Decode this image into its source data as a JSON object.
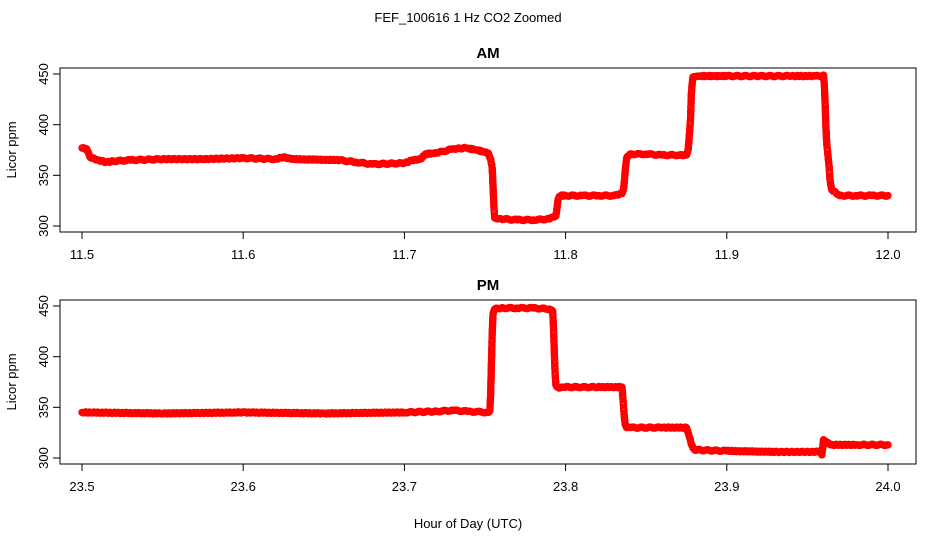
{
  "figure": {
    "title": "FEF_100616  1 Hz CO2 Zoomed",
    "xlabel": "Hour of Day (UTC)"
  },
  "chart_data": [
    {
      "type": "scatter",
      "title": "AM",
      "ylabel": "Licor ppm",
      "xlim": [
        11.5,
        12.0
      ],
      "ylim": [
        300,
        450
      ],
      "xticks": [
        "11.5",
        "11.6",
        "11.7",
        "11.8",
        "11.9",
        "12.0"
      ],
      "yticks": [
        "300",
        "350",
        "400",
        "450"
      ],
      "marker_color": "#ff0000",
      "grid": false,
      "series": [
        {
          "x": [
            11.5,
            11.503,
            11.505,
            11.51,
            11.515,
            11.52,
            11.53,
            11.55,
            11.575,
            11.6,
            11.62,
            11.625,
            11.63,
            11.66,
            11.67,
            11.68,
            11.7,
            11.705,
            11.71,
            11.713,
            11.72,
            11.73,
            11.738,
            11.745,
            11.752,
            11.7535,
            11.7545,
            11.755,
            11.7555,
            11.756,
            11.76,
            11.77,
            11.78,
            11.79,
            11.794,
            11.7945,
            11.795,
            11.7955,
            11.796,
            11.797,
            11.8,
            11.81,
            11.82,
            11.83,
            11.835,
            11.836,
            11.8365,
            11.837,
            11.8375,
            11.838,
            11.84,
            11.85,
            11.86,
            11.87,
            11.875,
            11.876,
            11.877,
            11.8775,
            11.878,
            11.8785,
            11.879,
            11.882,
            11.9,
            11.92,
            11.94,
            11.955,
            11.959,
            11.96,
            11.9605,
            11.961,
            11.9615,
            11.962,
            11.9625,
            11.963,
            11.9635,
            11.964,
            11.965,
            11.97,
            11.98,
            11.99,
            12.0
          ],
          "y": [
            377,
            376,
            368,
            365,
            363,
            364,
            365,
            366,
            366,
            367,
            366,
            368,
            366,
            365,
            363,
            361,
            362,
            365,
            366,
            371,
            372,
            376,
            377,
            375,
            372,
            366,
            357,
            338,
            320,
            308,
            307,
            306,
            306,
            307,
            310,
            316,
            322,
            327,
            329,
            330,
            330,
            330,
            330,
            330,
            332,
            337,
            345,
            355,
            362,
            368,
            371,
            371,
            370,
            370,
            370,
            375,
            394,
            406,
            430,
            440,
            447,
            448,
            448,
            448,
            448,
            448,
            448,
            449,
            439,
            420,
            397,
            381,
            374,
            366,
            358,
            346,
            336,
            330,
            330,
            330,
            330
          ]
        }
      ]
    },
    {
      "type": "scatter",
      "title": "PM",
      "ylabel": "Licor ppm",
      "xlim": [
        23.5,
        24.0
      ],
      "ylim": [
        300,
        450
      ],
      "xticks": [
        "23.5",
        "23.6",
        "23.7",
        "23.8",
        "23.9",
        "24.0"
      ],
      "yticks": [
        "300",
        "350",
        "400",
        "450"
      ],
      "marker_color": "#ff0000",
      "grid": false,
      "series": [
        {
          "x": [
            23.5,
            23.55,
            23.6,
            23.65,
            23.7,
            23.72,
            23.73,
            23.74,
            23.752,
            23.753,
            23.7535,
            23.754,
            23.7545,
            23.755,
            23.756,
            23.76,
            23.77,
            23.78,
            23.79,
            23.792,
            23.7925,
            23.793,
            23.7935,
            23.794,
            23.795,
            23.796,
            23.8,
            23.82,
            23.835,
            23.8355,
            23.836,
            23.8365,
            23.837,
            23.838,
            23.84,
            23.86,
            23.875,
            23.876,
            23.877,
            23.878,
            23.879,
            23.88,
            23.9,
            23.93,
            23.955,
            23.958,
            23.959,
            23.96,
            23.962,
            23.963,
            23.965,
            23.98,
            24.0
          ],
          "y": [
            345,
            344,
            345,
            344,
            345,
            346,
            347,
            346,
            345,
            347,
            363,
            394,
            424,
            443,
            447,
            448,
            448,
            448,
            447,
            445,
            428,
            404,
            383,
            372,
            370,
            369,
            370,
            370,
            370,
            360,
            349,
            339,
            333,
            330,
            330,
            330,
            330,
            325,
            320,
            314,
            310,
            308,
            307,
            306,
            306,
            307,
            303,
            318,
            316,
            314,
            313,
            313,
            313
          ]
        }
      ]
    }
  ]
}
